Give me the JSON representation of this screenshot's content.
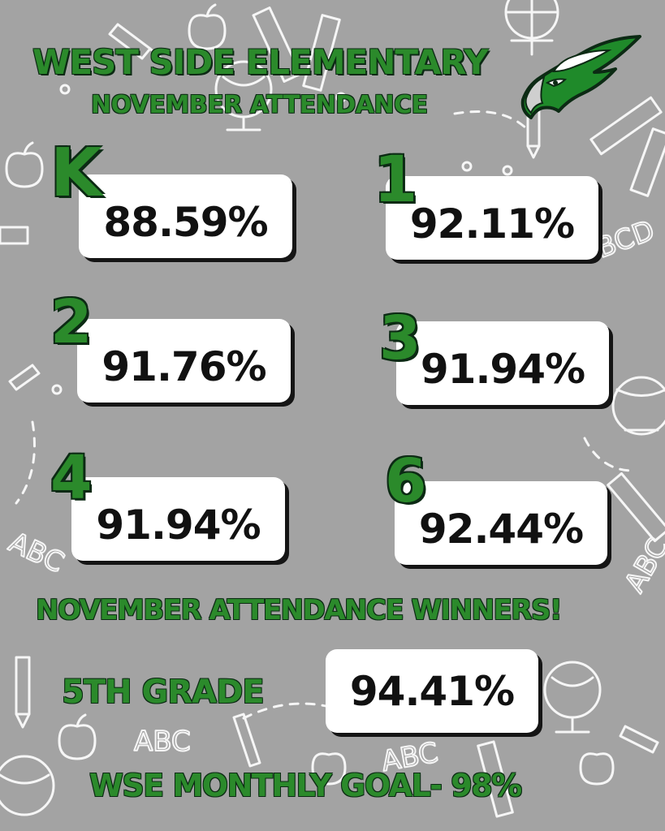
{
  "header": {
    "title": "WEST SIDE ELEMENTARY",
    "subtitle": "NOVEMBER ATTENDANCE",
    "mascot_icon": "eagle-head-icon"
  },
  "grades": [
    {
      "grade": "K",
      "attendance": "88.59%"
    },
    {
      "grade": "1",
      "attendance": "92.11%"
    },
    {
      "grade": "2",
      "attendance": "91.76%"
    },
    {
      "grade": "3",
      "attendance": "91.94%"
    },
    {
      "grade": "4",
      "attendance": "91.94%"
    },
    {
      "grade": "6",
      "attendance": "92.44%"
    }
  ],
  "winners": {
    "heading": "NOVEMBER ATTENDANCE WINNERS!",
    "grade_label": "5TH GRADE",
    "attendance": "94.41%"
  },
  "goal": "WSE MONTHLY GOAL- 98%",
  "colors": {
    "background": "#a3a3a3",
    "accent_green": "#2b8a2b",
    "outline_dark": "#0c2a14",
    "card": "#ffffff"
  },
  "decorations": [
    "apple-icon",
    "ruler-icon",
    "pencil-icon",
    "globe-icon",
    "abc-letters-icon"
  ]
}
